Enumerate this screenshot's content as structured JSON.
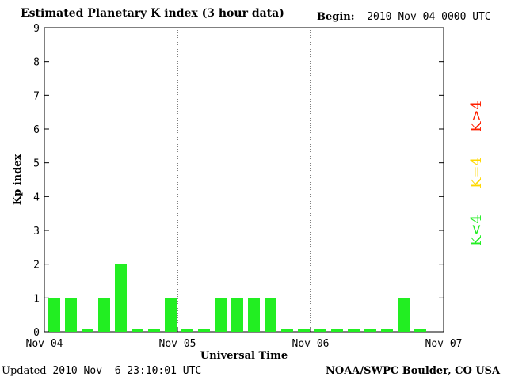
{
  "header": {
    "title": "Estimated Planetary K index (3 hour data)",
    "begin_label": "Begin:",
    "begin_value": "2010 Nov 04 0000 UTC"
  },
  "footer": {
    "updated_label": "Updated",
    "updated_value": "2010 Nov  6 23:10:01 UTC",
    "credit": "NOAA/SWPC Boulder, CO USA"
  },
  "legend": [
    {
      "label": "K>4",
      "color": "#ff2000"
    },
    {
      "label": "K=4",
      "color": "#ffd800"
    },
    {
      "label": "K<4",
      "color": "#22ee22"
    }
  ],
  "chart_data": {
    "type": "bar",
    "title": "Estimated Planetary K index (3 hour data)",
    "xlabel": "Universal Time",
    "ylabel": "Kp index",
    "ylim": [
      0,
      9
    ],
    "yticks": [
      0,
      1,
      2,
      3,
      4,
      5,
      6,
      7,
      8,
      9
    ],
    "xlim_days": [
      0,
      3
    ],
    "xtick_labels": [
      "Nov 04",
      "Nov 05",
      "Nov 06",
      "Nov 07"
    ],
    "day_dividers": "dotted",
    "bar_color": "#22ee22",
    "bars_per_day": 8,
    "values": [
      1,
      1,
      0,
      1,
      2,
      0,
      0,
      1,
      0,
      0,
      1,
      1,
      1,
      1,
      0,
      0,
      0,
      0,
      0,
      0,
      0,
      1,
      0
    ]
  }
}
